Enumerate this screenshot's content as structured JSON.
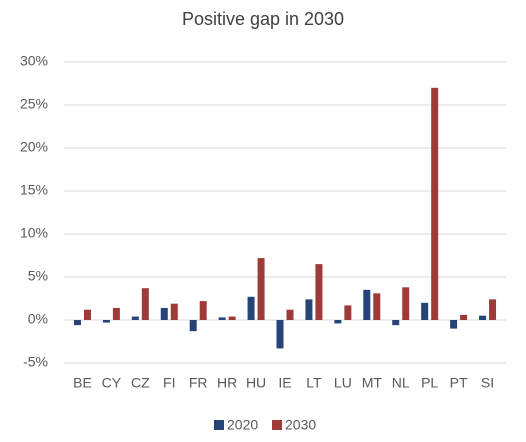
{
  "chart_data": {
    "type": "bar",
    "title": "Positive gap in 2030",
    "categories": [
      "BE",
      "CY",
      "CZ",
      "FI",
      "FR",
      "HR",
      "HU",
      "IE",
      "LT",
      "LU",
      "MT",
      "NL",
      "PL",
      "PT",
      "SI"
    ],
    "series": [
      {
        "name": "2020",
        "color": "#264478",
        "values": [
          -0.6,
          -0.3,
          0.4,
          1.4,
          -1.3,
          0.3,
          2.7,
          -3.3,
          2.4,
          -0.4,
          3.5,
          -0.6,
          2.0,
          -1.0,
          0.5
        ]
      },
      {
        "name": "2030",
        "color": "#9e3a38",
        "values": [
          1.2,
          1.4,
          3.7,
          1.9,
          2.2,
          0.4,
          7.2,
          1.2,
          6.5,
          1.7,
          3.1,
          3.8,
          27.0,
          0.6,
          2.4
        ]
      }
    ],
    "ylim": [
      -5,
      30
    ],
    "yticks": [
      {
        "value": -5,
        "label": "-5%"
      },
      {
        "value": 0,
        "label": "0%"
      },
      {
        "value": 5,
        "label": "5%"
      },
      {
        "value": 10,
        "label": "10%"
      },
      {
        "value": 15,
        "label": "15%"
      },
      {
        "value": 20,
        "label": "20%"
      },
      {
        "value": 25,
        "label": "25%"
      },
      {
        "value": 30,
        "label": "30%"
      }
    ],
    "grid": true,
    "legend": "bottom"
  }
}
